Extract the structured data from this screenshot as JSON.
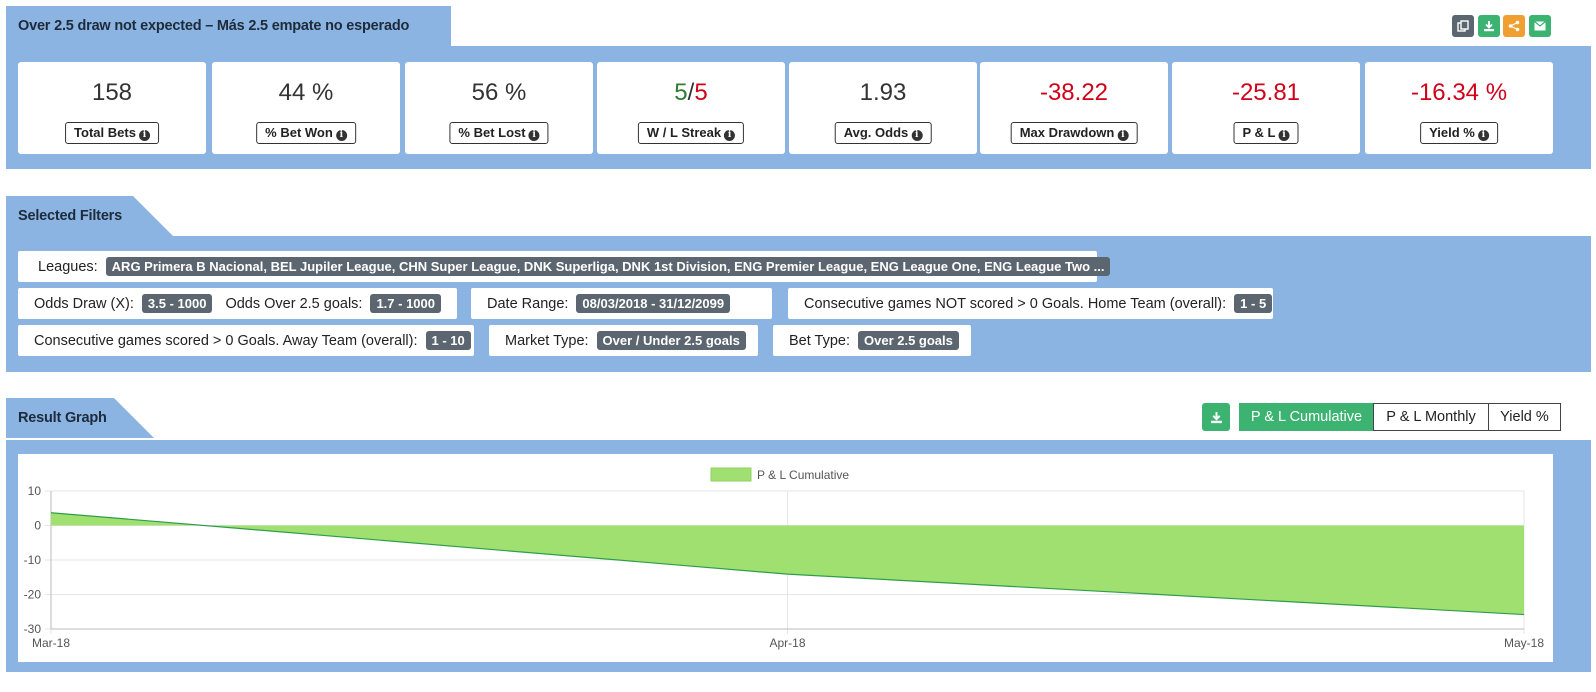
{
  "header": {
    "title": "Over 2.5 draw not expected – Más 2.5 empate no esperado",
    "actions": [
      {
        "icon": "copy-icon",
        "color": "#5b6670"
      },
      {
        "icon": "download-icon",
        "color": "#3cb371"
      },
      {
        "icon": "share-icon",
        "color": "#f0a030"
      },
      {
        "icon": "email-icon",
        "color": "#3cb371"
      }
    ]
  },
  "stats": [
    {
      "value": "158",
      "label": "Total Bets"
    },
    {
      "value": "44 %",
      "label": "% Bet Won"
    },
    {
      "value": "56 %",
      "label": "% Bet Lost"
    },
    {
      "value_win": "5",
      "value_sep": "/",
      "value_loss": "5",
      "label": "W / L Streak"
    },
    {
      "value": "1.93",
      "label": "Avg. Odds"
    },
    {
      "value": "-38.22",
      "label": "Max Drawdown"
    },
    {
      "value": "-25.81",
      "label": "P & L"
    },
    {
      "value": "-16.34 %",
      "label": "Yield %"
    }
  ],
  "filters": {
    "title": "Selected Filters",
    "leagues_label": "Leagues:",
    "leagues_value": "ARG Primera B Nacional, BEL Jupiler League, CHN Super League, DNK Superliga, DNK 1st Division, ENG Premier League, ENG League One, ENG League Two ...",
    "odds_draw_label": "Odds Draw (X):",
    "odds_draw_value": "3.5 - 1000",
    "odds_over_label": "Odds Over 2.5 goals:",
    "odds_over_value": "1.7 - 1000",
    "date_range_label": "Date Range:",
    "date_range_value": "08/03/2018 - 31/12/2099",
    "cons_not_scored_label": "Consecutive games NOT scored > 0 Goals. Home Team (overall):",
    "cons_not_scored_value": "1 - 5",
    "cons_scored_label": "Consecutive games scored > 0 Goals. Away Team (overall):",
    "cons_scored_value": "1 - 10",
    "market_label": "Market Type:",
    "market_value": "Over / Under 2.5 goals",
    "bet_type_label": "Bet Type:",
    "bet_type_value": "Over 2.5 goals"
  },
  "graph": {
    "title": "Result Graph",
    "buttons": [
      "P & L Cumulative",
      "P & L Monthly",
      "Yield %"
    ],
    "active_button": "P & L Cumulative"
  },
  "chart_data": {
    "type": "area",
    "legend": "P & L Cumulative",
    "legend_placement": "top-center",
    "fill_color": "#a0e070",
    "line_color": "#2e9e4a",
    "x": [
      "Mar-18",
      "Apr-18",
      "May-18"
    ],
    "y": [
      3.7,
      -14.1,
      -25.81
    ],
    "yticks": [
      "10",
      "0",
      "-10",
      "-20",
      "-30"
    ],
    "ylim": [
      -30,
      10
    ],
    "grid": true
  }
}
